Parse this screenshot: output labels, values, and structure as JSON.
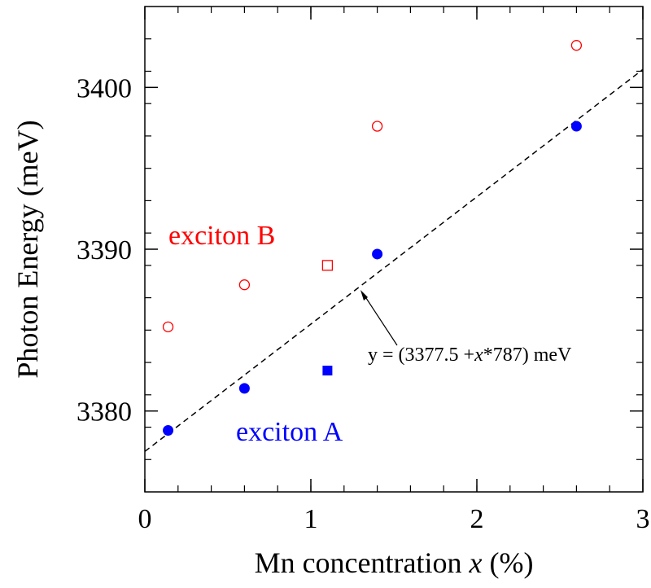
{
  "chart_data": {
    "type": "scatter",
    "title": "",
    "xlabel_prefix": "Mn concentration ",
    "xlabel_var": "x",
    "xlabel_suffix": " (%)",
    "ylabel": "Photon Energy (meV)",
    "xlim": [
      0,
      3
    ],
    "ylim": [
      3375,
      3405
    ],
    "x_ticks": [
      0,
      1,
      2,
      3
    ],
    "y_ticks": [
      3380,
      3390,
      3400
    ],
    "x_minor_step": 0.2,
    "y_minor_step": 2,
    "grid": false,
    "series": [
      {
        "name": "exciton A",
        "color": "#0000ff",
        "points": [
          {
            "x": 0.14,
            "y": 3378.8,
            "marker": "filled-circle"
          },
          {
            "x": 0.6,
            "y": 3381.4,
            "marker": "filled-circle"
          },
          {
            "x": 1.1,
            "y": 3382.5,
            "marker": "filled-square"
          },
          {
            "x": 1.4,
            "y": 3389.7,
            "marker": "filled-circle"
          },
          {
            "x": 2.6,
            "y": 3397.6,
            "marker": "filled-circle"
          }
        ]
      },
      {
        "name": "exciton B",
        "color": "#ff0000",
        "points": [
          {
            "x": 0.14,
            "y": 3385.2,
            "marker": "open-circle"
          },
          {
            "x": 0.6,
            "y": 3387.8,
            "marker": "open-circle"
          },
          {
            "x": 1.1,
            "y": 3389.0,
            "marker": "open-square"
          },
          {
            "x": 1.4,
            "y": 3397.6,
            "marker": "open-circle"
          },
          {
            "x": 2.6,
            "y": 3402.6,
            "marker": "open-circle"
          }
        ]
      }
    ],
    "fit_line": {
      "intercept": 3377.5,
      "slope": 7.87,
      "style": "dashed",
      "color": "#000000",
      "label_prefix": "y = (3377.5 +",
      "label_var": "x",
      "label_suffix": "*787) meV"
    }
  }
}
